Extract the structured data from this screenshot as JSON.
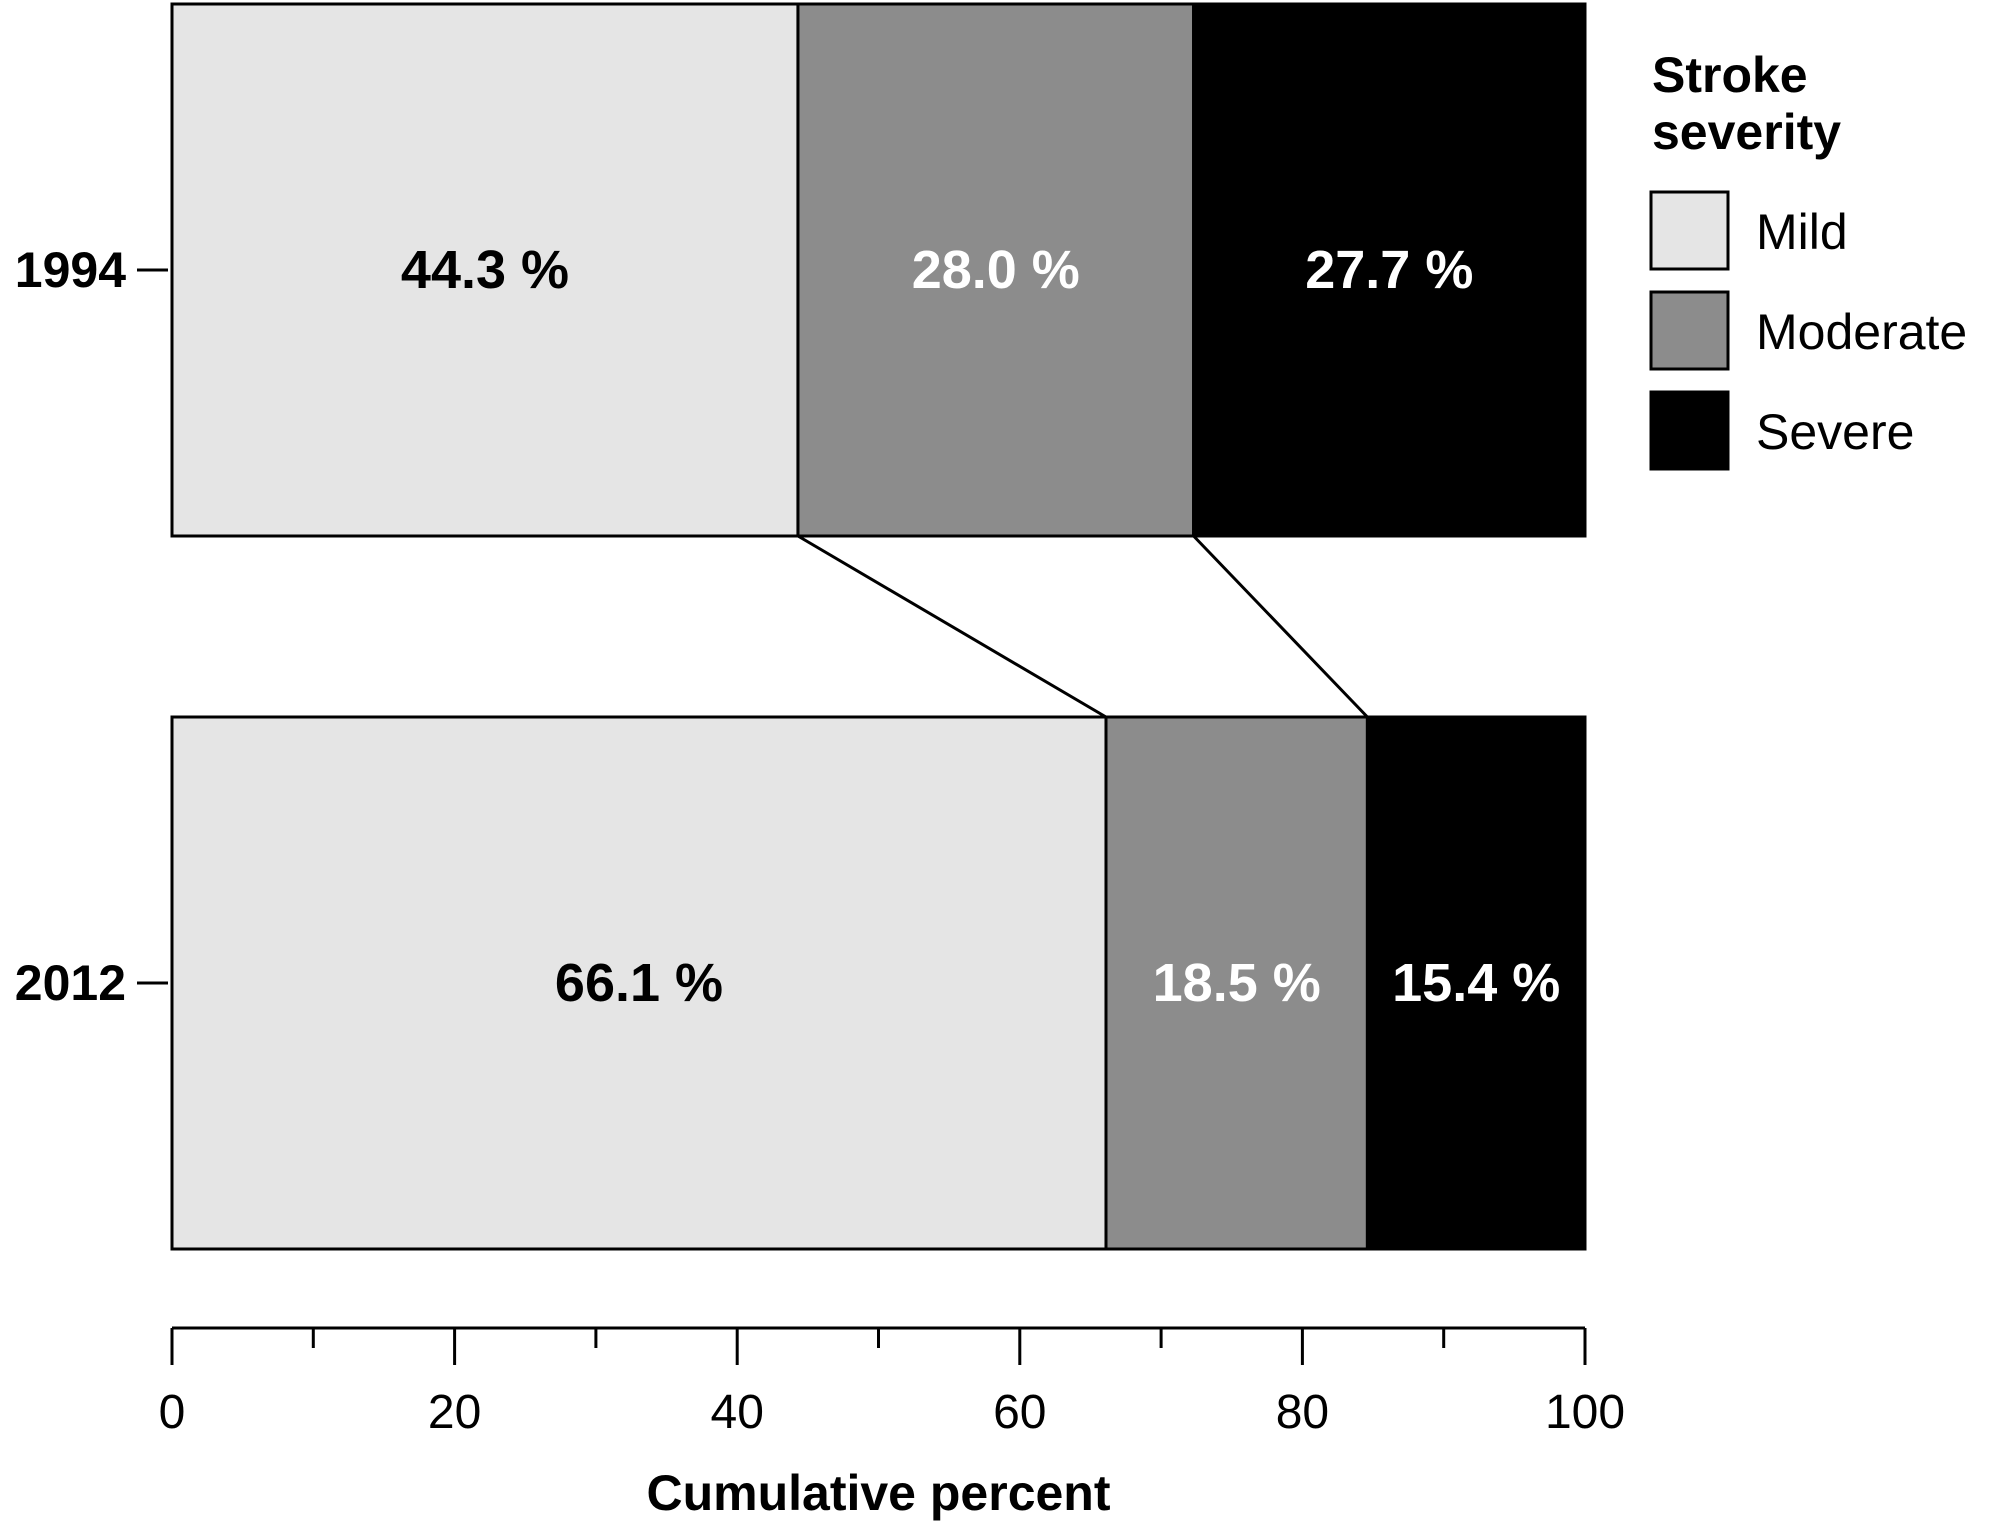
{
  "chart_data": {
    "type": "bar",
    "orientation": "horizontal",
    "stacked": true,
    "categories": [
      "1994",
      "2012"
    ],
    "series": [
      {
        "name": "Mild",
        "values": [
          44.3,
          66.1
        ],
        "labels": [
          "44.3 %",
          "66.1 %"
        ],
        "color": "#e5e5e5",
        "label_color": "#000000"
      },
      {
        "name": "Moderate",
        "values": [
          28.0,
          18.5
        ],
        "labels": [
          "28.0 %",
          "18.5 %"
        ],
        "color": "#8c8c8c",
        "label_color": "#ffffff"
      },
      {
        "name": "Severe",
        "values": [
          27.7,
          15.4
        ],
        "labels": [
          "27.7 %",
          "15.4 %"
        ],
        "color": "#000000",
        "label_color": "#ffffff"
      }
    ],
    "xlabel": "Cumulative percent",
    "ylabel": "",
    "xlim": [
      0,
      100
    ],
    "xticks": [
      0,
      20,
      40,
      60,
      80,
      100
    ],
    "xticks_minor": [
      10,
      30,
      50,
      70,
      90
    ],
    "legend": {
      "title_lines": [
        "Stroke",
        "severity"
      ],
      "position": "right"
    },
    "connector_lines": true,
    "grid": false
  }
}
